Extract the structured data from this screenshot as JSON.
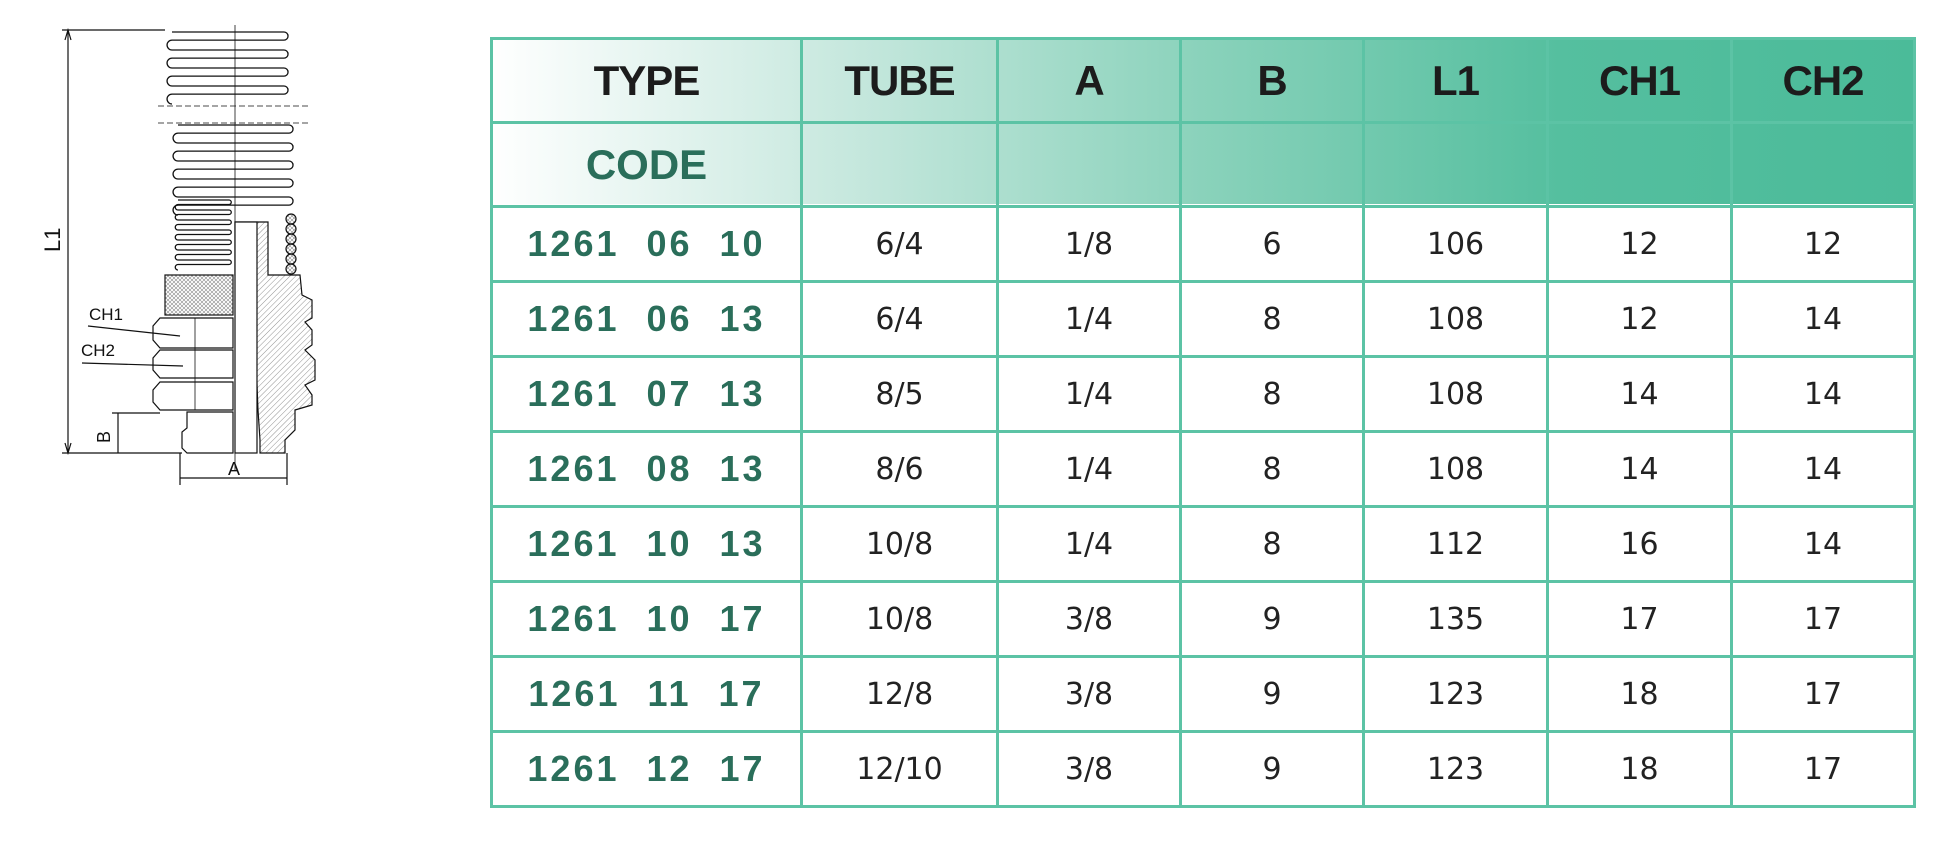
{
  "drawing": {
    "labels": {
      "l1": "L1",
      "ch1": "CH1",
      "ch2": "CH2",
      "b": "B",
      "a": "A"
    }
  },
  "table": {
    "headers": [
      "TYPE",
      "TUBE",
      "A",
      "B",
      "L1",
      "CH1",
      "CH2"
    ],
    "subheader": "CODE",
    "colors": {
      "border": "#5cc3a5",
      "code_text": "#2a6e5a",
      "header_gradient_end": "#4bbb99"
    },
    "rows": [
      [
        "1261 06 10",
        "6/4",
        "1/8",
        "6",
        "106",
        "12",
        "12"
      ],
      [
        "1261 06 13",
        "6/4",
        "1/4",
        "8",
        "108",
        "12",
        "14"
      ],
      [
        "1261 07 13",
        "8/5",
        "1/4",
        "8",
        "108",
        "14",
        "14"
      ],
      [
        "1261 08 13",
        "8/6",
        "1/4",
        "8",
        "108",
        "14",
        "14"
      ],
      [
        "1261 10 13",
        "10/8",
        "1/4",
        "8",
        "112",
        "16",
        "14"
      ],
      [
        "1261 10 17",
        "10/8",
        "3/8",
        "9",
        "135",
        "17",
        "17"
      ],
      [
        "1261 11 17",
        "12/8",
        "3/8",
        "9",
        "123",
        "18",
        "17"
      ],
      [
        "1261 12 17",
        "12/10",
        "3/8",
        "9",
        "123",
        "18",
        "17"
      ]
    ]
  }
}
